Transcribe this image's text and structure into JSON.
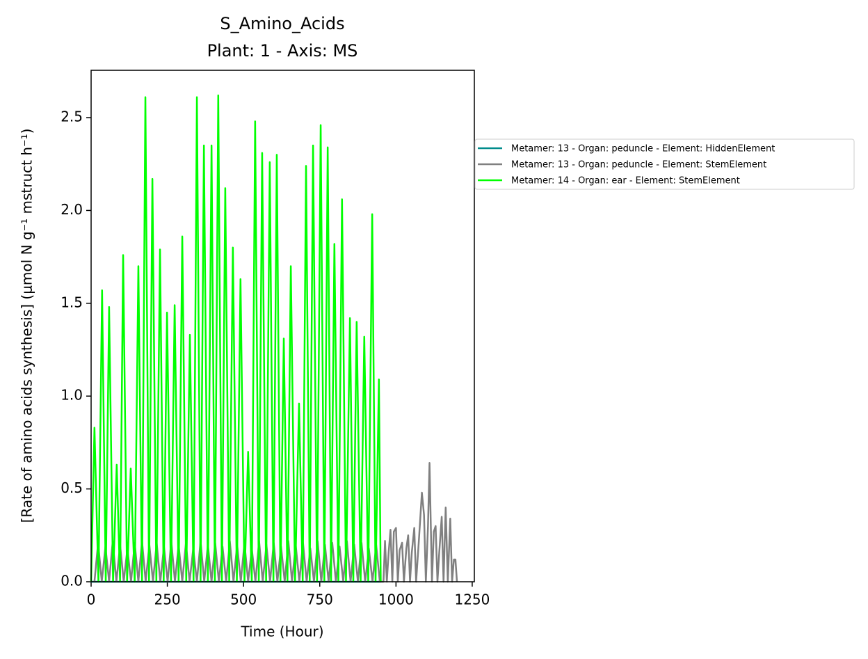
{
  "chart_data": {
    "type": "line",
    "title": "S_Amino_Acids",
    "subtitle": "Plant: 1 - Axis: MS",
    "x_label": "Time (Hour)",
    "y_label": "[Rate of amino acids synthesis] (μmol N g⁻¹ mstruct h⁻¹)",
    "xlim": [
      0,
      1257
    ],
    "ylim": [
      0,
      2.755
    ],
    "xticks": [
      0,
      250,
      500,
      750,
      1000,
      1250
    ],
    "yticks": [
      {
        "value": 0,
        "label": "0.0"
      },
      0.5,
      {
        "value": 1,
        "label": "1.0"
      },
      1.5,
      {
        "value": 2,
        "label": "2.0"
      },
      2.5
    ],
    "legend": "outside-right",
    "series": [
      {
        "name": "Metamer: 13 - Organ: peduncle - Element: HiddenElement",
        "color": "#008b8b",
        "x": [
          0,
          950
        ],
        "values": [
          0,
          0
        ]
      },
      {
        "name": "Metamer: 13 - Organ: peduncle - Element: StemElement",
        "color": "#808080",
        "x": [
          11,
          23,
          35,
          47,
          59,
          71,
          83,
          95,
          107,
          119,
          131,
          143,
          155,
          167,
          179,
          191,
          203,
          215,
          227,
          239,
          251,
          263,
          275,
          287,
          299,
          311,
          323,
          335,
          347,
          359,
          371,
          383,
          395,
          407,
          419,
          431,
          443,
          455,
          467,
          479,
          491,
          503,
          515,
          527,
          539,
          551,
          563,
          575,
          587,
          599,
          611,
          623,
          635,
          647,
          659,
          671,
          683,
          695,
          707,
          719,
          731,
          743,
          755,
          767,
          779,
          791,
          803,
          815,
          827,
          839,
          851,
          863,
          875,
          887,
          899,
          911,
          923,
          935,
          947,
          959,
          964,
          970,
          976,
          982,
          988,
          993,
          1000,
          1006,
          1012,
          1020,
          1026,
          1034,
          1040,
          1046,
          1052,
          1060,
          1066,
          1075,
          1085,
          1092,
          1098,
          1105,
          1110,
          1118,
          1124,
          1130,
          1136,
          1142,
          1150,
          1156,
          1163,
          1170,
          1178,
          1184,
          1190,
          1195,
          1200
        ],
        "values": [
          0,
          0.21,
          0,
          0.19,
          0,
          0.22,
          0,
          0.2,
          0,
          0.18,
          0,
          0.21,
          0,
          0.22,
          0,
          0.2,
          0,
          0.21,
          0,
          0.19,
          0,
          0.22,
          0,
          0.2,
          0,
          0.21,
          0,
          0.18,
          0,
          0.22,
          0,
          0.2,
          0,
          0.21,
          0,
          0.19,
          0,
          0.22,
          0,
          0.2,
          0,
          0.21,
          0,
          0.18,
          0,
          0.22,
          0,
          0.2,
          0,
          0.21,
          0,
          0.19,
          0,
          0.22,
          0,
          0.2,
          0,
          0.21,
          0,
          0.18,
          0,
          0.22,
          0,
          0.2,
          0,
          0.21,
          0,
          0.19,
          0,
          0.22,
          0,
          0.2,
          0,
          0.21,
          0,
          0.18,
          0,
          0.2,
          0,
          0,
          0.22,
          0,
          0.16,
          0.28,
          0,
          0.27,
          0.29,
          0,
          0.17,
          0.21,
          0,
          0.18,
          0.25,
          0,
          0.16,
          0.29,
          0,
          0.22,
          0.48,
          0.36,
          0,
          0.3,
          0.64,
          0,
          0.27,
          0.3,
          0,
          0.16,
          0.35,
          0,
          0.4,
          0,
          0.34,
          0,
          0.12,
          0.12,
          0
        ]
      },
      {
        "name": "Metamer: 14 - Organ: ear - Element: StemElement",
        "color": "#00ff00",
        "x": [
          0,
          11,
          24,
          36,
          48,
          59,
          72,
          84,
          95,
          105,
          118,
          130,
          143,
          155,
          167,
          178,
          190,
          201,
          214,
          226,
          238,
          249,
          262,
          274,
          287,
          299,
          312,
          324,
          336,
          347,
          359,
          370,
          383,
          395,
          406,
          417,
          429,
          440,
          453,
          465,
          478,
          490,
          503,
          515,
          527,
          538,
          550,
          561,
          574,
          586,
          598,
          609,
          621,
          632,
          644,
          655,
          669,
          682,
          694,
          705,
          717,
          728,
          741,
          753,
          765,
          776,
          787,
          798,
          811,
          823,
          836,
          849,
          860,
          871,
          884,
          896,
          909,
          922,
          933,
          944,
          950
        ],
        "values": [
          0,
          0.83,
          0,
          1.57,
          0,
          1.48,
          0,
          0.63,
          0,
          1.76,
          0,
          0.61,
          0,
          1.7,
          0,
          2.61,
          0,
          2.17,
          0,
          1.79,
          0,
          1.45,
          0,
          1.49,
          0,
          1.86,
          0,
          1.33,
          0,
          2.61,
          0,
          2.35,
          0,
          2.35,
          0,
          2.62,
          0,
          2.12,
          0,
          1.8,
          0,
          1.63,
          0,
          0.7,
          0,
          2.48,
          0,
          2.31,
          0,
          2.26,
          0,
          2.3,
          0,
          1.31,
          0,
          1.7,
          0,
          0.96,
          0,
          2.24,
          0,
          2.35,
          0,
          2.46,
          0,
          2.34,
          0,
          1.82,
          0,
          2.06,
          0,
          1.42,
          0,
          1.4,
          0,
          1.32,
          0,
          1.98,
          0,
          1.09,
          0
        ]
      }
    ]
  }
}
